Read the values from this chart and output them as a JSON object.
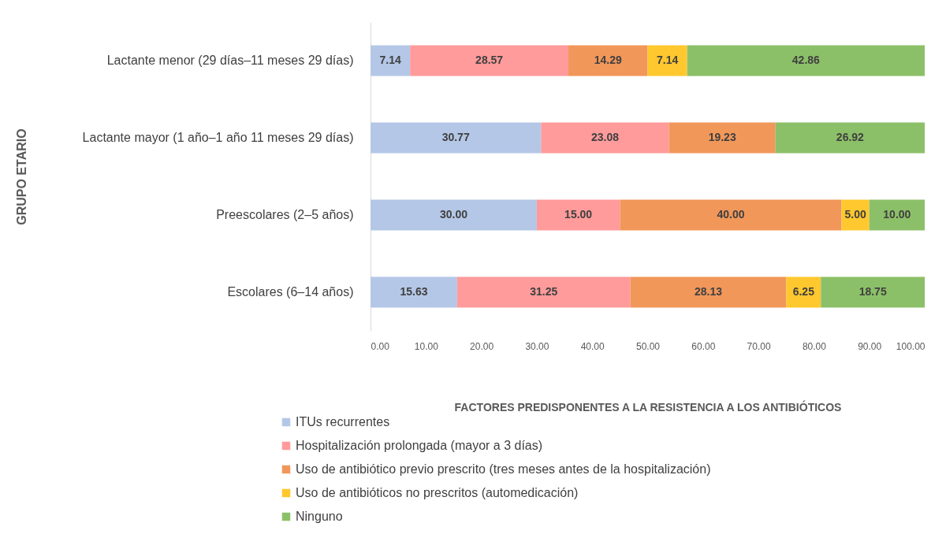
{
  "chart_data": {
    "type": "bar",
    "orientation": "horizontal",
    "stacked": true,
    "categories": [
      "Lactante menor (29 días–11 meses 29 días)",
      "Lactante mayor (1 año–1 año 11 meses 29 días)",
      "Preescolares (2–5 años)",
      "Escolares (6–14 años)"
    ],
    "xlabel": "FACTORES PREDISPONENTES A LA RESISTENCIA A LOS ANTIBIÓTICOS",
    "ylabel": "GRUPO ETARIO",
    "xlim": [
      0,
      100
    ],
    "xticks": [
      {
        "value": 0,
        "label": "0.00"
      },
      {
        "value": 10,
        "label": "10.00"
      },
      {
        "value": 20,
        "label": "20.00"
      },
      {
        "value": 30,
        "label": "30.00"
      },
      {
        "value": 40,
        "label": "40.00"
      },
      {
        "value": 50,
        "label": "50.00"
      },
      {
        "value": 60,
        "label": "60.00"
      },
      {
        "value": 70,
        "label": "70.00"
      },
      {
        "value": 80,
        "label": "80.00"
      },
      {
        "value": 90,
        "label": "90.00"
      },
      {
        "value": 100,
        "label": "100.00"
      }
    ],
    "legend": "bottom",
    "grid": false,
    "series": [
      {
        "name": "ITUs recurrentes",
        "color": "#b4c7e7",
        "values": [
          7.14,
          30.77,
          30.0,
          15.63
        ],
        "value_labels": [
          "7.14",
          "30.77",
          "30.00",
          "15.63"
        ]
      },
      {
        "name": "Hospitalización prolongada (mayor a 3 días)",
        "color": "#ff9b9b",
        "values": [
          28.57,
          23.08,
          15.0,
          31.25
        ],
        "value_labels": [
          "28.57",
          "23.08",
          "15.00",
          "31.25"
        ]
      },
      {
        "name": "Uso de antibiótico previo prescrito (tres meses antes de la hospitalización)",
        "color": "#f1975a",
        "values": [
          14.29,
          19.23,
          40.0,
          28.13
        ],
        "value_labels": [
          "14.29",
          "19.23",
          "40.00",
          "28.13"
        ]
      },
      {
        "name": "Uso de antibióticos no prescritos (automedicación)",
        "color": "#ffc82e",
        "values": [
          7.14,
          null,
          5.0,
          6.25
        ],
        "value_labels": [
          "7.14",
          null,
          "5.00",
          "6.25"
        ]
      },
      {
        "name": "Ninguno",
        "color": "#8cc068",
        "values": [
          42.86,
          26.92,
          10.0,
          18.75
        ],
        "value_labels": [
          "42.86",
          "26.92",
          "10.00",
          "18.75"
        ]
      }
    ]
  }
}
